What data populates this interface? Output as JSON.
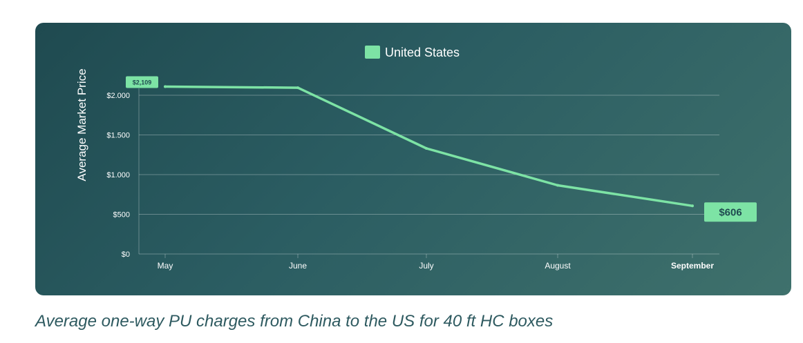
{
  "colors": {
    "line": "#7de3a5",
    "text": "#ffffff",
    "grid": "rgba(255,255,255,0.30)",
    "caption": "#2e5a60"
  },
  "caption": "Average one-way PU charges from China to the US for 40 ft HC boxes",
  "chart_data": {
    "type": "line",
    "categories": [
      "May",
      "June",
      "July",
      "August",
      "September"
    ],
    "series": [
      {
        "name": "United States",
        "values": [
          2109,
          2095,
          1330,
          865,
          606
        ]
      }
    ],
    "ylabel": "Average Market Price",
    "xlabel": "",
    "ylim": [
      0,
      2000
    ],
    "yticks": [
      0,
      500,
      1000,
      1500,
      2000
    ],
    "ytick_labels": [
      "$0",
      "$500",
      "$1.000",
      "$1.500",
      "$2.000"
    ],
    "grid": true,
    "legend": "top-center",
    "data_labels": {
      "first": "$2,109",
      "last": "$606"
    }
  }
}
